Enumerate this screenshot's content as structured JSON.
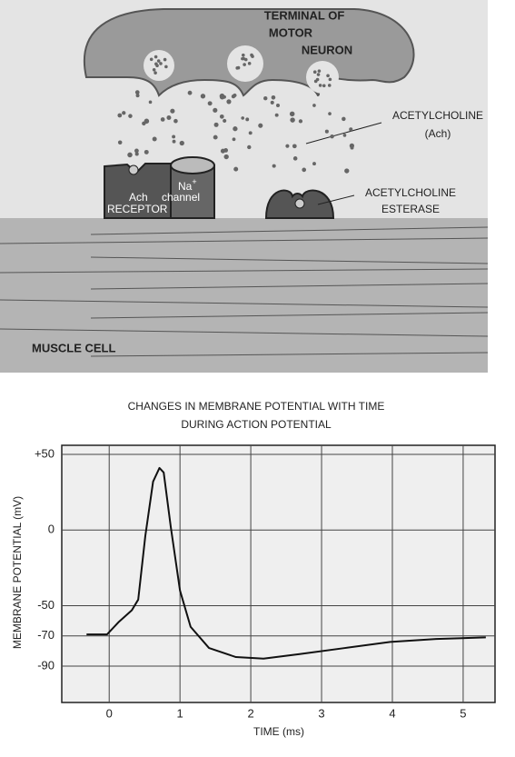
{
  "diagram": {
    "terminal": [
      "TERMINAL OF",
      "MOTOR",
      "NEURON"
    ],
    "acetylcholine": [
      "ACETYLCHOLINE",
      "(Ach)"
    ],
    "na": "Na",
    "na_sup": "+",
    "ach": "Ach",
    "channel": "channel",
    "receptor": "RECEPTOR",
    "esterase": [
      "ACETYLCHOLINE",
      "ESTERASE"
    ],
    "muscle": "MUSCLE CELL"
  },
  "chart_data": {
    "type": "line",
    "title": [
      "CHANGES IN MEMBRANE POTENTIAL WITH TIME",
      "DURING ACTION POTENTIAL"
    ],
    "x_label": "TIME (ms)",
    "y_label": "MEMBRANE POTENTIAL (mV)",
    "x": [
      -0.32,
      -0.03,
      0.13,
      0.32,
      0.41,
      0.51,
      0.62,
      0.71,
      0.77,
      0.87,
      1.0,
      1.15,
      1.41,
      1.79,
      2.18,
      2.69,
      3.33,
      3.97,
      4.62,
      5.32
    ],
    "series": [
      {
        "color": "#111111",
        "values": [
          -69,
          -69,
          -61,
          -53,
          -46,
          -4,
          32,
          41,
          38,
          2,
          -40,
          -64,
          -78,
          -84,
          -85,
          -82,
          -78,
          -74,
          -72,
          -71
        ]
      }
    ],
    "xlim": [
      -0.67,
      5.45
    ],
    "ylim": [
      -114,
      56
    ],
    "xticks": [
      0,
      1,
      2,
      3,
      4,
      5
    ],
    "yticks": [
      {
        "value": 50,
        "label": "+50"
      },
      0,
      -50,
      -70,
      -90
    ],
    "grid": true
  }
}
